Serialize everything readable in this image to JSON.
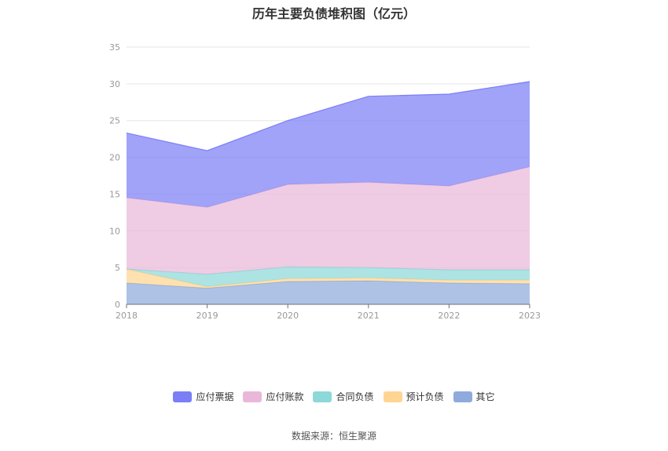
{
  "chart_data": {
    "type": "area",
    "stacked": true,
    "title": "历年主要负债堆积图（亿元）",
    "categories": [
      "2018",
      "2019",
      "2020",
      "2021",
      "2022",
      "2023"
    ],
    "ylim": [
      0,
      35
    ],
    "yticks": [
      0,
      5,
      10,
      15,
      20,
      25,
      30,
      35
    ],
    "grid": true,
    "legend_position": "bottom",
    "series": [
      {
        "name": "其它",
        "color": "#8faadc",
        "values": [
          2.9,
          2.2,
          3.1,
          3.2,
          2.9,
          2.8
        ]
      },
      {
        "name": "预计负债",
        "color": "#ffd591",
        "values": [
          1.9,
          0.2,
          0.4,
          0.4,
          0.4,
          0.5
        ]
      },
      {
        "name": "合同负债",
        "color": "#8dd8d8",
        "values": [
          0.0,
          1.7,
          1.6,
          1.4,
          1.4,
          1.4
        ]
      },
      {
        "name": "应付账款",
        "color": "#e9b8d9",
        "values": [
          9.7,
          9.1,
          11.2,
          11.6,
          11.4,
          14.0
        ]
      },
      {
        "name": "应付票据",
        "color": "#7b7ff5",
        "values": [
          8.8,
          7.7,
          8.7,
          11.7,
          12.5,
          11.6
        ]
      }
    ],
    "legend_order": [
      "应付票据",
      "应付账款",
      "合同负债",
      "预计负债",
      "其它"
    ],
    "source": "数据来源：恒生聚源"
  }
}
